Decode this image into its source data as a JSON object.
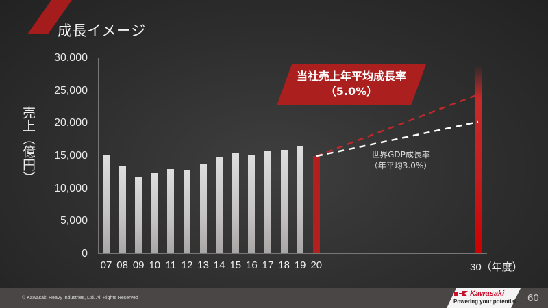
{
  "slide": {
    "title": "成長イメージ",
    "page_number": "60",
    "copyright": "© Kawasaki Heavy Industries, Ltd. All Rights Reserved",
    "logo": {
      "name": "Kawasaki",
      "tagline": "Powering your potential"
    }
  },
  "colors": {
    "accent": "#ab1f1f",
    "bar_gray": "#d0cece",
    "background": "#2e2e2e",
    "footer": "#4a4646"
  },
  "callout": {
    "line1": "当社売上年平均成長率",
    "line2": "（5.0%）"
  },
  "gdp_label": {
    "line1": "世界GDP成長率",
    "line2": "（年平均3.0%）"
  },
  "axis": {
    "ylabel": "売上（億円）",
    "yticks": [
      "30,000",
      "25,000",
      "20,000",
      "15,000",
      "10,000",
      "5,000",
      "0"
    ],
    "xticks": [
      "07",
      "08",
      "09",
      "10",
      "11",
      "12",
      "13",
      "14",
      "15",
      "16",
      "17",
      "18",
      "19",
      "20",
      "30（年度）"
    ]
  },
  "chart_data": {
    "type": "bar",
    "title": "成長イメージ",
    "xlabel": "年度",
    "ylabel": "売上（億円）",
    "ylim": [
      0,
      30000
    ],
    "categories": [
      "07",
      "08",
      "09",
      "10",
      "11",
      "12",
      "13",
      "14",
      "15",
      "16",
      "17",
      "18",
      "19",
      "20",
      "30"
    ],
    "values": [
      15000,
      13300,
      11600,
      12300,
      12900,
      12800,
      13700,
      14800,
      15300,
      15100,
      15600,
      15800,
      16400,
      14900,
      27000
    ],
    "highlighted": [
      "20",
      "30"
    ],
    "projections": [
      {
        "name": "当社売上年平均成長率（5.0%）",
        "from": [
          "20",
          14900
        ],
        "to": [
          "30",
          24300
        ],
        "style": "dashed",
        "color": "#c0282a"
      },
      {
        "name": "世界GDP成長率（年平均3.0%）",
        "from": [
          "20",
          14900
        ],
        "to": [
          "30",
          20000
        ],
        "style": "dashed",
        "color": "#ffffff"
      }
    ],
    "annotations": [
      "当社売上年平均成長率（5.0%）",
      "世界GDP成長率（年平均3.0%）"
    ],
    "grid": false,
    "legend": "none"
  }
}
